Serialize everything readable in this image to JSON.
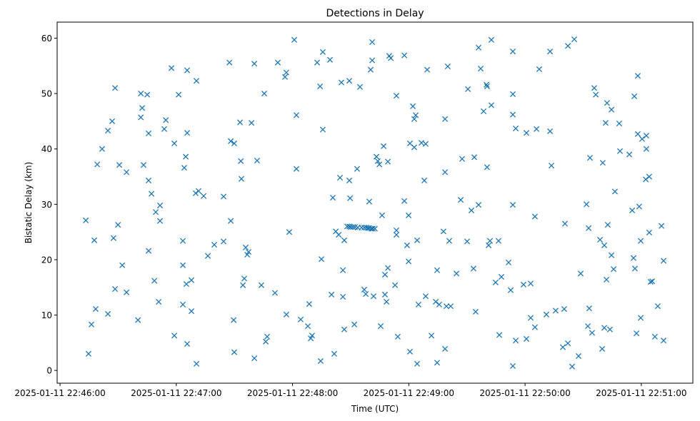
{
  "chart_data": {
    "type": "scatter",
    "title": "Detections in Delay",
    "xlabel": "Time (UTC)",
    "ylabel": "Bistatic Delay (km)",
    "x_units": "seconds after 2025-01-11 22:46:00 UTC",
    "xlim": [
      -1.5,
      326.6
    ],
    "ylim": [
      -2.3,
      62.9
    ],
    "grid": false,
    "marker": "x",
    "color": "#1f77b4",
    "x_ticks": [
      {
        "value": 0,
        "label": "2025-01-11 22:46:00"
      },
      {
        "value": 60,
        "label": "2025-01-11 22:47:00"
      },
      {
        "value": 120,
        "label": "2025-01-11 22:48:00"
      },
      {
        "value": 180,
        "label": "2025-01-11 22:49:00"
      },
      {
        "value": 240,
        "label": "2025-01-11 22:50:00"
      },
      {
        "value": 300,
        "label": "2025-01-11 22:51:00"
      }
    ],
    "y_ticks": [
      {
        "value": 0,
        "label": "0"
      },
      {
        "value": 10,
        "label": "10"
      },
      {
        "value": 20,
        "label": "20"
      },
      {
        "value": 30,
        "label": "30"
      },
      {
        "value": 40,
        "label": "40"
      },
      {
        "value": 50,
        "label": "50"
      },
      {
        "value": 60,
        "label": "60"
      }
    ],
    "points": [
      [
        13.3,
        27.1
      ],
      [
        14.7,
        3.0
      ],
      [
        16.2,
        8.3
      ],
      [
        17.7,
        23.5
      ],
      [
        18.4,
        11.1
      ],
      [
        19.2,
        37.2
      ],
      [
        21.7,
        40.0
      ],
      [
        24.7,
        10.2
      ],
      [
        24.7,
        43.3
      ],
      [
        26.9,
        45.0
      ],
      [
        28.4,
        51.0
      ],
      [
        27.6,
        23.9
      ],
      [
        28.4,
        14.7
      ],
      [
        29.9,
        26.3
      ],
      [
        30.6,
        37.1
      ],
      [
        32.1,
        19.0
      ],
      [
        34.3,
        35.8
      ],
      [
        34.3,
        14.1
      ],
      [
        40.2,
        9.1
      ],
      [
        41.7,
        50.0
      ],
      [
        41.7,
        45.7
      ],
      [
        42.4,
        47.4
      ],
      [
        43.1,
        37.1
      ],
      [
        45.0,
        49.8
      ],
      [
        45.7,
        42.8
      ],
      [
        45.7,
        34.3
      ],
      [
        45.7,
        21.6
      ],
      [
        47.2,
        31.9
      ],
      [
        48.7,
        16.2
      ],
      [
        49.4,
        28.6
      ],
      [
        50.9,
        12.4
      ],
      [
        51.6,
        29.8
      ],
      [
        51.6,
        27.0
      ],
      [
        53.8,
        43.6
      ],
      [
        54.6,
        45.2
      ],
      [
        57.5,
        54.6
      ],
      [
        59.0,
        6.3
      ],
      [
        59.0,
        41.0
      ],
      [
        61.2,
        49.8
      ],
      [
        63.4,
        23.4
      ],
      [
        63.4,
        19.0
      ],
      [
        63.4,
        11.9
      ],
      [
        64.1,
        36.6
      ],
      [
        64.9,
        38.6
      ],
      [
        65.6,
        54.2
      ],
      [
        65.6,
        42.9
      ],
      [
        65.6,
        4.8
      ],
      [
        65.2,
        15.6
      ],
      [
        67.8,
        10.7
      ],
      [
        67.8,
        16.3
      ],
      [
        70.0,
        32.0
      ],
      [
        71.5,
        32.4
      ],
      [
        70.4,
        52.3
      ],
      [
        70.4,
        1.2
      ],
      [
        74.1,
        31.5
      ],
      [
        76.3,
        20.7
      ],
      [
        79.6,
        22.7
      ],
      [
        84.4,
        23.3
      ],
      [
        84.4,
        31.4
      ],
      [
        87.4,
        55.6
      ],
      [
        88.1,
        41.4
      ],
      [
        88.1,
        27.0
      ],
      [
        89.6,
        9.1
      ],
      [
        89.9,
        41.0
      ],
      [
        89.9,
        3.3
      ],
      [
        92.9,
        44.8
      ],
      [
        93.3,
        37.8
      ],
      [
        93.6,
        34.6
      ],
      [
        94.4,
        15.4
      ],
      [
        95.1,
        16.6
      ],
      [
        95.8,
        22.2
      ],
      [
        96.6,
        20.9
      ],
      [
        97.3,
        21.4
      ],
      [
        98.8,
        44.7
      ],
      [
        100.3,
        55.4
      ],
      [
        100.3,
        2.2
      ],
      [
        101.7,
        37.9
      ],
      [
        103.9,
        15.4
      ],
      [
        105.4,
        50.0
      ],
      [
        106.2,
        5.2
      ],
      [
        106.9,
        6.1
      ],
      [
        110.9,
        14.0
      ],
      [
        112.4,
        55.6
      ],
      [
        116.1,
        53.0
      ],
      [
        116.8,
        53.8
      ],
      [
        116.8,
        10.1
      ],
      [
        118.3,
        25.0
      ],
      [
        120.9,
        59.7
      ],
      [
        122.0,
        46.1
      ],
      [
        122.0,
        36.4
      ],
      [
        124.2,
        9.2
      ],
      [
        127.9,
        8.0
      ],
      [
        128.6,
        12.0
      ],
      [
        130.1,
        6.3
      ],
      [
        129.4,
        5.8
      ],
      [
        132.7,
        55.6
      ],
      [
        134.2,
        51.3
      ],
      [
        134.5,
        1.7
      ],
      [
        134.9,
        20.1
      ],
      [
        135.6,
        43.5
      ],
      [
        135.6,
        57.5
      ],
      [
        139.3,
        56.1
      ],
      [
        140.1,
        13.7
      ],
      [
        140.8,
        31.2
      ],
      [
        141.5,
        3.0
      ],
      [
        142.3,
        25.1
      ],
      [
        143.8,
        24.5
      ],
      [
        144.5,
        34.8
      ],
      [
        145.2,
        52.0
      ],
      [
        146.0,
        18.1
      ],
      [
        146.0,
        13.3
      ],
      [
        146.7,
        23.5
      ],
      [
        146.7,
        7.4
      ],
      [
        149.3,
        52.3
      ],
      [
        149.3,
        34.3
      ],
      [
        149.7,
        31.1
      ],
      [
        148.2,
        26.0
      ],
      [
        149.3,
        26.0
      ],
      [
        150.0,
        25.9
      ],
      [
        151.1,
        25.9
      ],
      [
        152.2,
        25.9
      ],
      [
        153.7,
        25.8
      ],
      [
        155.6,
        25.8
      ],
      [
        157.0,
        25.8
      ],
      [
        158.1,
        25.8
      ],
      [
        158.9,
        25.7
      ],
      [
        159.6,
        25.7
      ],
      [
        160.7,
        25.6
      ],
      [
        161.4,
        25.6
      ],
      [
        162.5,
        25.6
      ],
      [
        151.9,
        8.3
      ],
      [
        153.3,
        36.4
      ],
      [
        154.8,
        51.2
      ],
      [
        157.0,
        14.6
      ],
      [
        157.8,
        13.8
      ],
      [
        159.6,
        30.5
      ],
      [
        160.3,
        54.3
      ],
      [
        161.1,
        59.3
      ],
      [
        161.1,
        56.0
      ],
      [
        161.8,
        13.4
      ],
      [
        163.3,
        38.6
      ],
      [
        164.0,
        37.8
      ],
      [
        164.8,
        37.2
      ],
      [
        165.5,
        8.0
      ],
      [
        166.2,
        28.0
      ],
      [
        167.0,
        40.5
      ],
      [
        167.7,
        17.3
      ],
      [
        167.7,
        13.7
      ],
      [
        168.5,
        12.4
      ],
      [
        169.2,
        18.5
      ],
      [
        169.2,
        37.7
      ],
      [
        169.9,
        56.8
      ],
      [
        170.7,
        56.4
      ],
      [
        172.9,
        15.4
      ],
      [
        173.6,
        49.6
      ],
      [
        173.6,
        25.3
      ],
      [
        173.6,
        24.5
      ],
      [
        174.3,
        6.1
      ],
      [
        177.7,
        56.9
      ],
      [
        177.7,
        30.6
      ],
      [
        179.1,
        22.6
      ],
      [
        179.9,
        19.7
      ],
      [
        179.9,
        28.0
      ],
      [
        180.6,
        3.4
      ],
      [
        180.6,
        41.0
      ],
      [
        182.1,
        47.7
      ],
      [
        182.8,
        45.4
      ],
      [
        183.6,
        46.1
      ],
      [
        182.8,
        40.3
      ],
      [
        184.3,
        1.2
      ],
      [
        185.0,
        11.9
      ],
      [
        184.3,
        23.5
      ],
      [
        186.5,
        41.1
      ],
      [
        188.0,
        34.3
      ],
      [
        188.7,
        40.9
      ],
      [
        188.7,
        13.4
      ],
      [
        189.5,
        54.3
      ],
      [
        191.7,
        6.3
      ],
      [
        194.6,
        1.4
      ],
      [
        194.6,
        18.1
      ],
      [
        193.9,
        12.4
      ],
      [
        195.7,
        11.9
      ],
      [
        197.9,
        25.1
      ],
      [
        198.7,
        3.9
      ],
      [
        198.7,
        45.4
      ],
      [
        198.7,
        35.8
      ],
      [
        199.4,
        11.6
      ],
      [
        200.1,
        54.9
      ],
      [
        200.9,
        23.4
      ],
      [
        201.6,
        11.6
      ],
      [
        204.6,
        17.5
      ],
      [
        206.8,
        30.8
      ],
      [
        207.5,
        38.2
      ],
      [
        210.1,
        23.3
      ],
      [
        210.5,
        50.8
      ],
      [
        212.3,
        28.9
      ],
      [
        213.4,
        18.4
      ],
      [
        213.8,
        38.5
      ],
      [
        214.5,
        10.6
      ],
      [
        216.0,
        58.3
      ],
      [
        216.0,
        29.9
      ],
      [
        217.1,
        54.5
      ],
      [
        218.6,
        46.8
      ],
      [
        220.1,
        51.6
      ],
      [
        220.4,
        51.3
      ],
      [
        220.4,
        36.7
      ],
      [
        221.2,
        22.6
      ],
      [
        221.9,
        23.4
      ],
      [
        222.6,
        47.9
      ],
      [
        222.6,
        59.7
      ],
      [
        224.8,
        15.9
      ],
      [
        226.3,
        23.4
      ],
      [
        226.7,
        6.4
      ],
      [
        227.8,
        16.9
      ],
      [
        231.5,
        19.5
      ],
      [
        232.6,
        14.5
      ],
      [
        233.7,
        49.9
      ],
      [
        233.7,
        57.6
      ],
      [
        233.7,
        46.2
      ],
      [
        233.7,
        29.9
      ],
      [
        233.7,
        0.8
      ],
      [
        235.2,
        43.7
      ],
      [
        235.2,
        5.4
      ],
      [
        239.2,
        15.5
      ],
      [
        240.7,
        42.9
      ],
      [
        240.7,
        5.7
      ],
      [
        242.9,
        15.7
      ],
      [
        242.9,
        9.5
      ],
      [
        245.1,
        7.8
      ],
      [
        245.9,
        43.6
      ],
      [
        245.1,
        27.8
      ],
      [
        247.3,
        54.4
      ],
      [
        251.0,
        10.1
      ],
      [
        252.9,
        57.6
      ],
      [
        252.9,
        43.2
      ],
      [
        253.6,
        37.0
      ],
      [
        255.8,
        10.8
      ],
      [
        259.5,
        4.2
      ],
      [
        260.2,
        11.1
      ],
      [
        260.6,
        26.5
      ],
      [
        262.1,
        58.6
      ],
      [
        262.1,
        4.9
      ],
      [
        264.3,
        0.7
      ],
      [
        265.4,
        59.8
      ],
      [
        267.6,
        2.6
      ],
      [
        268.7,
        17.5
      ],
      [
        271.7,
        30.0
      ],
      [
        272.4,
        8.0
      ],
      [
        272.8,
        25.7
      ],
      [
        273.5,
        38.4
      ],
      [
        273.1,
        11.2
      ],
      [
        274.6,
        6.8
      ],
      [
        275.7,
        51.0
      ],
      [
        276.5,
        49.8
      ],
      [
        278.7,
        23.6
      ],
      [
        279.8,
        3.9
      ],
      [
        280.1,
        37.5
      ],
      [
        280.9,
        22.6
      ],
      [
        281.6,
        44.7
      ],
      [
        280.9,
        7.7
      ],
      [
        282.0,
        16.4
      ],
      [
        282.3,
        48.3
      ],
      [
        282.7,
        26.3
      ],
      [
        283.8,
        7.4
      ],
      [
        284.6,
        47.1
      ],
      [
        284.6,
        20.8
      ],
      [
        285.7,
        18.3
      ],
      [
        286.4,
        32.3
      ],
      [
        288.6,
        44.6
      ],
      [
        289.0,
        39.6
      ],
      [
        293.8,
        39.0
      ],
      [
        295.3,
        28.9
      ],
      [
        296.0,
        20.3
      ],
      [
        296.4,
        49.5
      ],
      [
        296.7,
        18.4
      ],
      [
        297.5,
        6.7
      ],
      [
        298.2,
        53.2
      ],
      [
        298.2,
        42.7
      ],
      [
        298.9,
        29.6
      ],
      [
        299.7,
        23.4
      ],
      [
        299.7,
        9.5
      ],
      [
        300.4,
        41.8
      ],
      [
        302.3,
        34.5
      ],
      [
        302.6,
        42.4
      ],
      [
        302.6,
        40.0
      ],
      [
        304.1,
        35.0
      ],
      [
        304.1,
        24.9
      ],
      [
        304.8,
        16.0
      ],
      [
        305.6,
        16.1
      ],
      [
        307.0,
        6.1
      ],
      [
        308.5,
        11.6
      ],
      [
        310.4,
        26.1
      ],
      [
        311.5,
        5.4
      ],
      [
        311.5,
        19.8
      ]
    ]
  }
}
